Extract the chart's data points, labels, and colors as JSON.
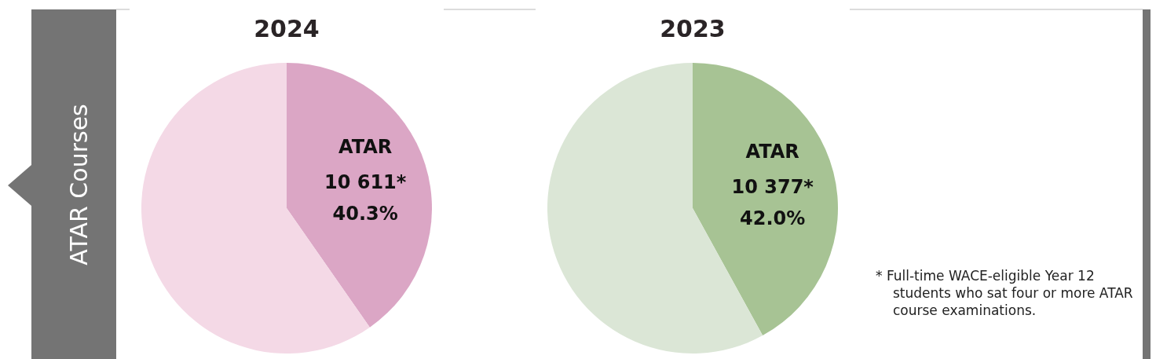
{
  "chart_data": [
    {
      "type": "pie",
      "title": "2024",
      "categories": [
        "ATAR",
        null
      ],
      "values": [
        40.3,
        59.7
      ],
      "colors": [
        "#dba6c5",
        "#f4d9e6"
      ],
      "value_labels": [
        "40.3%",
        null
      ],
      "annotations": [
        "ATAR Courses",
        {
          "text": "10 611*",
          "x": "ATAR"
        }
      ]
    },
    {
      "type": "pie",
      "title": "2023",
      "categories": [
        "ATAR",
        null
      ],
      "values": [
        42.0,
        58.0
      ],
      "colors": [
        "#a7c394",
        "#dbe6d6"
      ],
      "value_labels": [
        "42.0%",
        null
      ],
      "annotations": [
        {
          "text": "10 377*",
          "x": "ATAR"
        },
        "* Full-time WACE-eligible Year 12 students who sat four or more ATAR course examinations."
      ]
    }
  ]
}
